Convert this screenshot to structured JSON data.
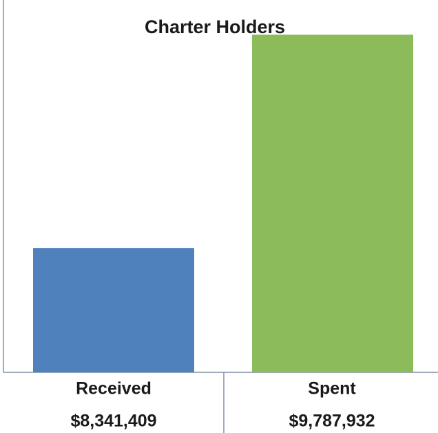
{
  "chart_data": {
    "type": "bar",
    "title": "Charter Holders",
    "categories": [
      "Received",
      "Spent"
    ],
    "values": [
      8341409,
      9787932
    ],
    "value_labels": [
      "$8,341,409",
      "$9,787,932"
    ],
    "colors": [
      "#4f81bd",
      "#8cbb5a"
    ],
    "ylim": [
      7500000,
      10000000
    ]
  }
}
